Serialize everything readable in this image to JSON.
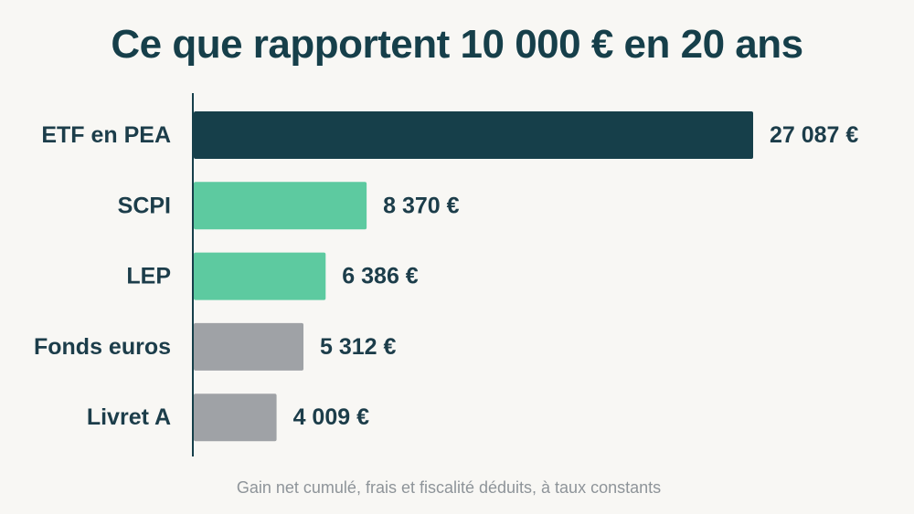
{
  "chart_data": {
    "type": "bar",
    "orientation": "horizontal",
    "title": "Ce que rapportent 10 000 € en 20 ans",
    "caption": "Gain net cumulé, frais et fiscalité déduits, à taux constants",
    "categories": [
      "ETF en PEA",
      "SCPI",
      "LEP",
      "Fonds euros",
      "Livret A"
    ],
    "values": [
      27087,
      8370,
      6386,
      5312,
      4009
    ],
    "value_labels": [
      "27 087 €",
      "8 370 €",
      "6 386 €",
      "5 312 €",
      "4 009 €"
    ],
    "bar_colors": [
      "#163f4a",
      "#5dcaa0",
      "#5dcaa0",
      "#9fa2a6",
      "#9fa2a6"
    ],
    "xlim": [
      0,
      27087
    ],
    "grid": false,
    "legend": "none"
  },
  "colors": {
    "background": "#f8f7f4",
    "text": "#1c3d4a",
    "axis": "#163f4a",
    "caption": "#8e9499"
  }
}
